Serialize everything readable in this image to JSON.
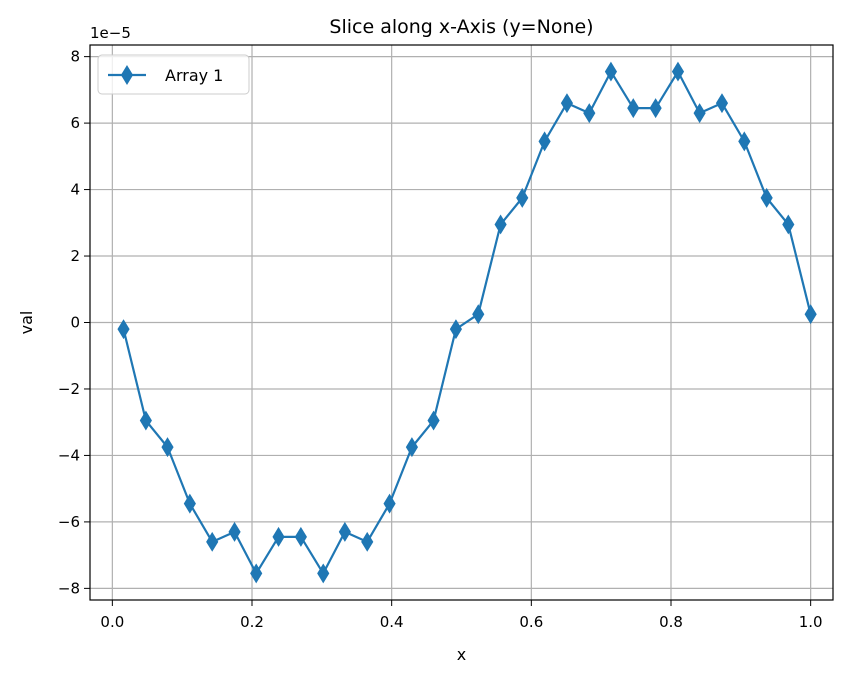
{
  "chart_data": {
    "type": "line",
    "title": "Slice along x-Axis (y=None)",
    "xlabel": "x",
    "ylabel": "val",
    "offset_label": "1e−5",
    "xlim": [
      -0.032,
      1.032
    ],
    "ylim": [
      -8.35,
      8.35
    ],
    "xticks": [
      0.0,
      0.2,
      0.4,
      0.6,
      0.8,
      1.0
    ],
    "xtick_labels": [
      "0.0",
      "0.2",
      "0.4",
      "0.6",
      "0.8",
      "1.0"
    ],
    "yticks": [
      -8,
      -6,
      -4,
      -2,
      0,
      2,
      4,
      6,
      8
    ],
    "ytick_labels": [
      "−8",
      "−6",
      "−4",
      "−2",
      "0",
      "2",
      "4",
      "6",
      "8"
    ],
    "grid": true,
    "legend_position": "top-left",
    "series": [
      {
        "name": "Array 1",
        "color": "#1f77b4",
        "marker": "thin-diamond",
        "x": [
          0.016,
          0.048,
          0.079,
          0.111,
          0.143,
          0.175,
          0.206,
          0.238,
          0.27,
          0.302,
          0.333,
          0.365,
          0.397,
          0.429,
          0.46,
          0.492,
          0.524,
          0.556,
          0.587,
          0.619,
          0.651,
          0.683,
          0.714,
          0.746,
          0.778,
          0.81,
          0.841,
          0.873,
          0.905,
          0.937,
          0.968,
          1.0
        ],
        "y": [
          -0.2,
          -2.95,
          -3.75,
          -5.45,
          -6.6,
          -6.3,
          -7.55,
          -6.45,
          -6.45,
          -7.55,
          -6.3,
          -6.6,
          -5.45,
          -3.75,
          -2.95,
          -0.2,
          0.25,
          2.95,
          3.75,
          5.45,
          6.6,
          6.3,
          7.55,
          6.45,
          6.45,
          7.55,
          6.3,
          6.6,
          5.45,
          3.75,
          2.95,
          0.25
        ]
      }
    ]
  }
}
